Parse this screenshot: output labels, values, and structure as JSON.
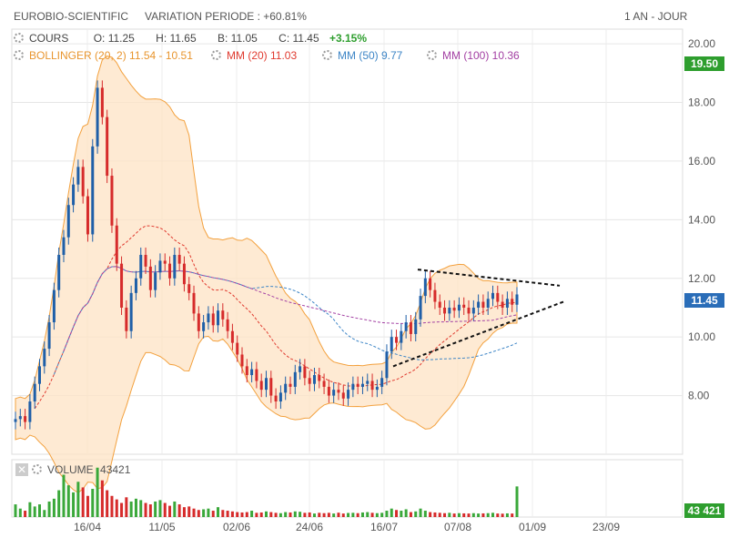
{
  "header": {
    "name": "EUROBIO-SCIENTIFIC",
    "variation": "VARIATION PERIODE : +60.81%",
    "period": "1 AN - JOUR"
  },
  "legend": {
    "cours_label": "COURS",
    "open": "O: 11.25",
    "high": "H: 11.65",
    "low": "B: 11.05",
    "close": "C: 11.45",
    "change": "+3.15%",
    "bollinger": "BOLLINGER (20, 2)  11.54 - 10.51",
    "mm20": "MM (20)  11.03",
    "mm50": "MM (50)  9.77",
    "mm100": "MM (100)  10.36",
    "volume_label": "VOLUME",
    "volume_value": "43421"
  },
  "badges": {
    "high": "19.50",
    "last": "11.45",
    "volume": "43 421"
  },
  "colors": {
    "up": "#1f5fa8",
    "down": "#d62b2b",
    "bollinger": "#f3a13e",
    "mm20": "#e03a2f",
    "mm50": "#3d85c6",
    "mm100": "#a340a3",
    "green_badge": "#2e9e2e",
    "blue_badge": "#2a6db8"
  },
  "chart_data": {
    "type": "candlestick",
    "y_ticks": [
      "20.00",
      "18.00",
      "16.00",
      "14.00",
      "12.00",
      "10.00",
      "8.00"
    ],
    "ylim": [
      6.0,
      20.5
    ],
    "x_ticks": [
      "16/04",
      "11/05",
      "02/06",
      "24/06",
      "16/07",
      "07/08",
      "01/09",
      "23/09"
    ],
    "closes": [
      7.2,
      7.3,
      7.1,
      7.8,
      8.4,
      9.0,
      9.6,
      10.5,
      11.6,
      12.8,
      13.4,
      14.5,
      15.2,
      15.8,
      14.8,
      13.5,
      16.5,
      18.5,
      17.5,
      15.5,
      13.8,
      12.5,
      11.0,
      10.2,
      11.5,
      12.0,
      12.8,
      12.4,
      11.6,
      12.2,
      12.6,
      12.5,
      12.0,
      12.8,
      12.5,
      11.8,
      11.5,
      10.8,
      10.2,
      10.5,
      10.8,
      10.4,
      10.9,
      10.6,
      10.2,
      9.8,
      9.4,
      9.0,
      8.7,
      8.9,
      8.5,
      8.2,
      8.6,
      8.0,
      7.8,
      8.1,
      8.4,
      8.3,
      8.8,
      9.0,
      8.6,
      8.4,
      8.7,
      8.5,
      8.3,
      8.0,
      8.2,
      8.1,
      7.9,
      8.2,
      8.4,
      8.3,
      8.4,
      8.5,
      8.2,
      8.3,
      8.6,
      9.5,
      10.0,
      9.8,
      10.2,
      10.5,
      10.1,
      10.6,
      11.4,
      12.0,
      11.6,
      11.2,
      11.0,
      10.8,
      11.0,
      10.9,
      11.1,
      11.0,
      10.8,
      11.0,
      11.2,
      11.0,
      11.3,
      11.5,
      11.2,
      11.0,
      11.3,
      11.1,
      11.45
    ],
    "volume_ylim": [
      0,
      80000
    ],
    "volumes": [
      18000,
      12000,
      9000,
      21000,
      15000,
      18000,
      10000,
      22000,
      26000,
      38000,
      60000,
      45000,
      35000,
      50000,
      42000,
      30000,
      40000,
      70000,
      52000,
      38000,
      30000,
      25000,
      20000,
      28000,
      22000,
      26000,
      24000,
      20000,
      18000,
      22000,
      24000,
      20000,
      16000,
      22000,
      18000,
      14000,
      15000,
      12000,
      10000,
      11000,
      12000,
      9000,
      14000,
      10000,
      9000,
      8000,
      7000,
      6500,
      7000,
      9000,
      6000,
      6500,
      8000,
      7000,
      6000,
      5500,
      7000,
      6500,
      8000,
      7500,
      6000,
      6500,
      5000,
      6000,
      5500,
      6000,
      5000,
      6200,
      5000,
      5800,
      6000,
      5500,
      6500,
      7000,
      6000,
      5500,
      6000,
      9000,
      12000,
      10000,
      9000,
      11000,
      7000,
      8000,
      12000,
      9000,
      7000,
      6500,
      6000,
      5500,
      6000,
      5000,
      5500,
      5200,
      5000,
      5500,
      5000,
      5200,
      5500,
      6000,
      5000,
      4800,
      5200,
      5000,
      43421
    ],
    "annotation": "symmetrical triangle drawn with dashed trend lines"
  }
}
